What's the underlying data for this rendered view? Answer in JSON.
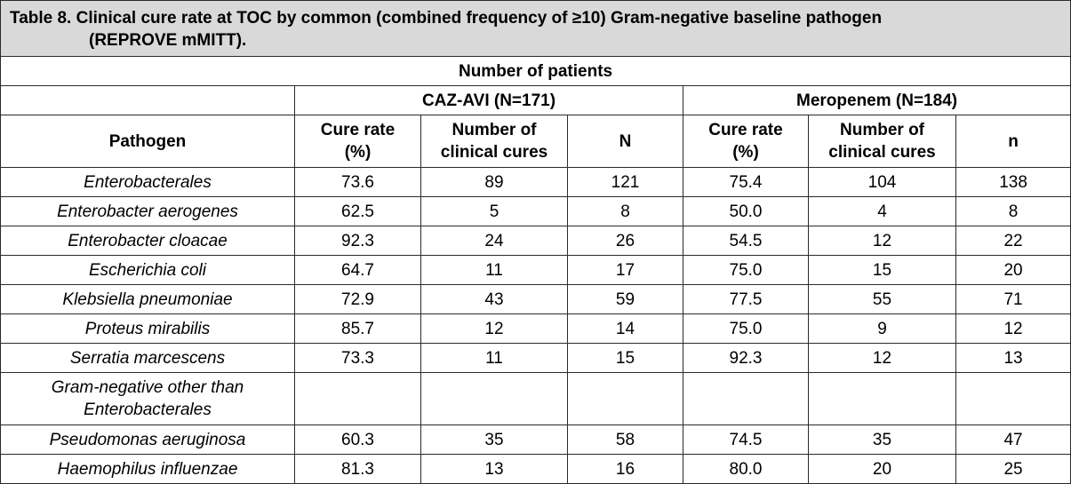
{
  "table": {
    "caption_line1": "Table 8. Clinical cure rate at TOC by common (combined frequency of ≥10) Gram-negative baseline pathogen",
    "caption_line2": "(REPROVE mMITT).",
    "span_header": "Number of patients",
    "groups": {
      "caz_avi": "CAZ-AVI (N=171)",
      "meropenem": "Meropenem (N=184)"
    },
    "columns": {
      "pathogen": "Pathogen",
      "caz_cure_rate_1": "Cure rate",
      "caz_cure_rate_2": "(%)",
      "caz_cures_1": "Number of",
      "caz_cures_2": "clinical cures",
      "caz_n": "N",
      "mero_cure_rate_1": "Cure rate",
      "mero_cure_rate_2": "(%)",
      "mero_cures_1": "Number of",
      "mero_cures_2": "clinical cures",
      "mero_n": "n"
    },
    "rows": [
      {
        "pathogen": "Enterobacterales",
        "caz_rate": "73.6",
        "caz_cures": "89",
        "caz_n": "121",
        "mero_rate": "75.4",
        "mero_cures": "104",
        "mero_n": "138"
      },
      {
        "pathogen": "Enterobacter aerogenes",
        "caz_rate": "62.5",
        "caz_cures": "5",
        "caz_n": "8",
        "mero_rate": "50.0",
        "mero_cures": "4",
        "mero_n": "8"
      },
      {
        "pathogen": "Enterobacter cloacae",
        "caz_rate": "92.3",
        "caz_cures": "24",
        "caz_n": "26",
        "mero_rate": "54.5",
        "mero_cures": "12",
        "mero_n": "22"
      },
      {
        "pathogen": "Escherichia coli",
        "caz_rate": "64.7",
        "caz_cures": "11",
        "caz_n": "17",
        "mero_rate": "75.0",
        "mero_cures": "15",
        "mero_n": "20"
      },
      {
        "pathogen": "Klebsiella pneumoniae",
        "caz_rate": "72.9",
        "caz_cures": "43",
        "caz_n": "59",
        "mero_rate": "77.5",
        "mero_cures": "55",
        "mero_n": "71"
      },
      {
        "pathogen": "Proteus mirabilis",
        "caz_rate": "85.7",
        "caz_cures": "12",
        "caz_n": "14",
        "mero_rate": "75.0",
        "mero_cures": "9",
        "mero_n": "12"
      },
      {
        "pathogen": "Serratia marcescens",
        "caz_rate": "73.3",
        "caz_cures": "11",
        "caz_n": "15",
        "mero_rate": "92.3",
        "mero_cures": "12",
        "mero_n": "13"
      },
      {
        "pathogen_1": "Gram-negative other than",
        "pathogen_2": "Enterobacterales",
        "caz_rate": "",
        "caz_cures": "",
        "caz_n": "",
        "mero_rate": "",
        "mero_cures": "",
        "mero_n": ""
      },
      {
        "pathogen": "Pseudomonas aeruginosa",
        "caz_rate": "60.3",
        "caz_cures": "35",
        "caz_n": "58",
        "mero_rate": "74.5",
        "mero_cures": "35",
        "mero_n": "47"
      },
      {
        "pathogen": "Haemophilus influenzae",
        "caz_rate": "81.3",
        "caz_cures": "13",
        "caz_n": "16",
        "mero_rate": "80.0",
        "mero_cures": "20",
        "mero_n": "25"
      }
    ]
  }
}
